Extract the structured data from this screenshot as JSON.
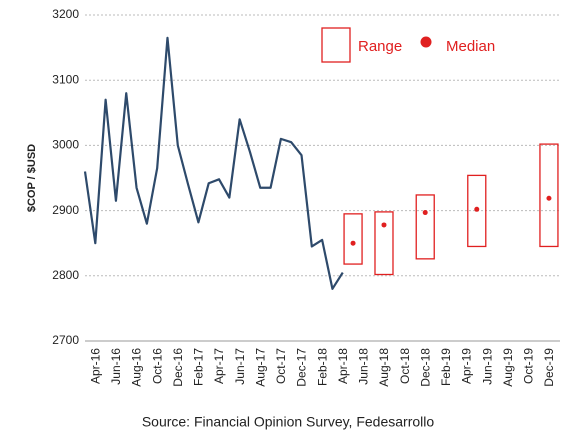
{
  "chart_data": {
    "type": "line",
    "y_label": "$COP / $USD",
    "source": "Source: Financial Opinion Survey, Fedesarrollo",
    "categories": [
      null,
      "Apr-16",
      null,
      "Jun-16",
      null,
      "Aug-16",
      null,
      "Oct-16",
      null,
      "Dec-16",
      null,
      "Feb-17",
      null,
      "Apr-17",
      null,
      "Jun-17",
      null,
      "Aug-17",
      null,
      "Oct-17",
      null,
      "Dec-17",
      null,
      "Feb-18",
      null,
      "Apr-18",
      null,
      "Jun-18",
      null,
      "Aug-18",
      null,
      "Oct-18",
      null,
      "Dec-18",
      null,
      "Feb-19",
      null,
      "Apr-19",
      null,
      "Jun-19",
      null,
      "Aug-19",
      null,
      "Oct-19",
      null,
      "Dec-19"
    ],
    "values": [
      2960,
      2850,
      3070,
      2915,
      3080,
      2935,
      2880,
      2965,
      3165,
      3000,
      2940,
      2882,
      2942,
      2948,
      2920,
      3040,
      2990,
      2935,
      2935,
      3010,
      3005,
      2985,
      2845,
      2855,
      2780,
      2805,
      null,
      null,
      null,
      null,
      null,
      null,
      null,
      null,
      null,
      null,
      null,
      null,
      null,
      null,
      null,
      null,
      null,
      null,
      null,
      null
    ],
    "color": "#2e4a6b",
    "range": {
      "name": "Range",
      "color": "#e02020",
      "low": [
        null,
        null,
        null,
        null,
        null,
        null,
        null,
        null,
        null,
        null,
        null,
        null,
        null,
        null,
        null,
        null,
        null,
        null,
        null,
        null,
        null,
        null,
        null,
        null,
        null,
        null,
        2818,
        null,
        null,
        2802,
        null,
        null,
        null,
        2826,
        null,
        null,
        null,
        null,
        2845,
        null,
        null,
        null,
        null,
        null,
        null,
        2845
      ],
      "high": [
        null,
        null,
        null,
        null,
        null,
        null,
        null,
        null,
        null,
        null,
        null,
        null,
        null,
        null,
        null,
        null,
        null,
        null,
        null,
        null,
        null,
        null,
        null,
        null,
        null,
        null,
        2895,
        null,
        null,
        2898,
        null,
        null,
        null,
        2924,
        null,
        null,
        null,
        null,
        2954,
        null,
        null,
        null,
        null,
        null,
        null,
        3002
      ]
    },
    "median": {
      "name": "Median",
      "color": "#e02020",
      "values": [
        null,
        null,
        null,
        null,
        null,
        null,
        null,
        null,
        null,
        null,
        null,
        null,
        null,
        null,
        null,
        null,
        null,
        null,
        null,
        null,
        null,
        null,
        null,
        null,
        null,
        null,
        2850,
        null,
        null,
        2878,
        null,
        null,
        null,
        2897,
        null,
        null,
        null,
        null,
        2902,
        null,
        null,
        null,
        null,
        null,
        null,
        2919
      ]
    },
    "ylim": [
      2700,
      3200
    ],
    "yticks": [
      2700,
      2800,
      2900,
      3000,
      3100,
      3200
    ],
    "grid": true
  }
}
